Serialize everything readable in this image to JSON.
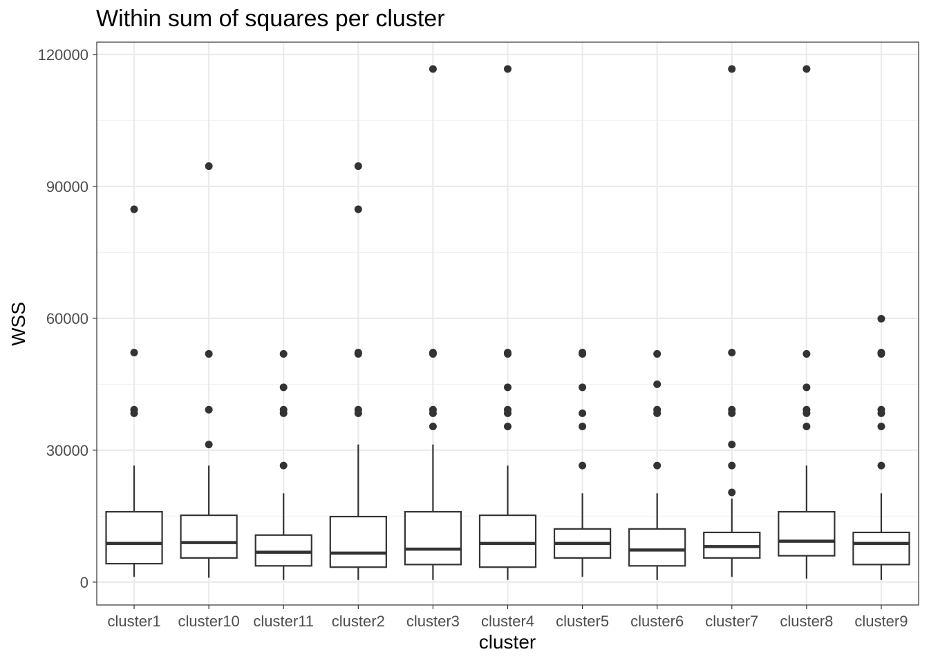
{
  "chart_data": {
    "type": "boxplot",
    "title": "Within sum of squares per cluster",
    "xlabel": "cluster",
    "ylabel": "WSS",
    "ylim": [
      -5200,
      122800
    ],
    "yticks": [
      0,
      30000,
      60000,
      90000,
      120000
    ],
    "grid": true,
    "legend": "none",
    "colors": {
      "box_stroke": "#333333",
      "outlier": "#333333",
      "grid_major": "#ebebeb",
      "grid_minor": "#f2f2f2",
      "panel_border": "#333333",
      "tick_label": "#4d4d4d"
    },
    "categories": [
      "cluster1",
      "cluster10",
      "cluster11",
      "cluster2",
      "cluster3",
      "cluster4",
      "cluster5",
      "cluster6",
      "cluster7",
      "cluster8",
      "cluster9"
    ],
    "boxes": [
      {
        "min": 1200,
        "q1": 4200,
        "median": 8800,
        "q3": 16000,
        "max": 26500,
        "outliers": [
          84800,
          52200,
          39200,
          38400
        ]
      },
      {
        "min": 1000,
        "q1": 5500,
        "median": 9000,
        "q3": 15200,
        "max": 26500,
        "outliers": [
          94600,
          51900,
          39200,
          31300
        ]
      },
      {
        "min": 500,
        "q1": 3700,
        "median": 6800,
        "q3": 10700,
        "max": 20200,
        "outliers": [
          51900,
          44300,
          39200,
          38400,
          26500
        ]
      },
      {
        "min": 500,
        "q1": 3400,
        "median": 6600,
        "q3": 14900,
        "max": 31300,
        "outliers": [
          94600,
          84800,
          52200,
          51900,
          39200,
          38400
        ]
      },
      {
        "min": 500,
        "q1": 4000,
        "median": 7500,
        "q3": 16000,
        "max": 31300,
        "outliers": [
          116700,
          52200,
          51900,
          39200,
          38400,
          35400
        ]
      },
      {
        "min": 500,
        "q1": 3400,
        "median": 8800,
        "q3": 15200,
        "max": 26500,
        "outliers": [
          116700,
          52200,
          51900,
          44300,
          39200,
          38400,
          35400
        ]
      },
      {
        "min": 1200,
        "q1": 5500,
        "median": 8800,
        "q3": 12100,
        "max": 20200,
        "outliers": [
          52200,
          51900,
          44300,
          38400,
          35400,
          26500
        ]
      },
      {
        "min": 500,
        "q1": 3700,
        "median": 7300,
        "q3": 12100,
        "max": 20200,
        "outliers": [
          51900,
          45000,
          39200,
          38400,
          26500
        ]
      },
      {
        "min": 1200,
        "q1": 5500,
        "median": 8100,
        "q3": 11300,
        "max": 19000,
        "outliers": [
          116700,
          52200,
          39200,
          38400,
          31300,
          26500,
          20400
        ]
      },
      {
        "min": 800,
        "q1": 6000,
        "median": 9300,
        "q3": 16000,
        "max": 26500,
        "outliers": [
          116700,
          51900,
          44300,
          39200,
          38400,
          35400
        ]
      },
      {
        "min": 500,
        "q1": 4000,
        "median": 8800,
        "q3": 11300,
        "max": 20200,
        "outliers": [
          59900,
          52200,
          51900,
          39200,
          38400,
          35400,
          26500
        ]
      }
    ]
  }
}
